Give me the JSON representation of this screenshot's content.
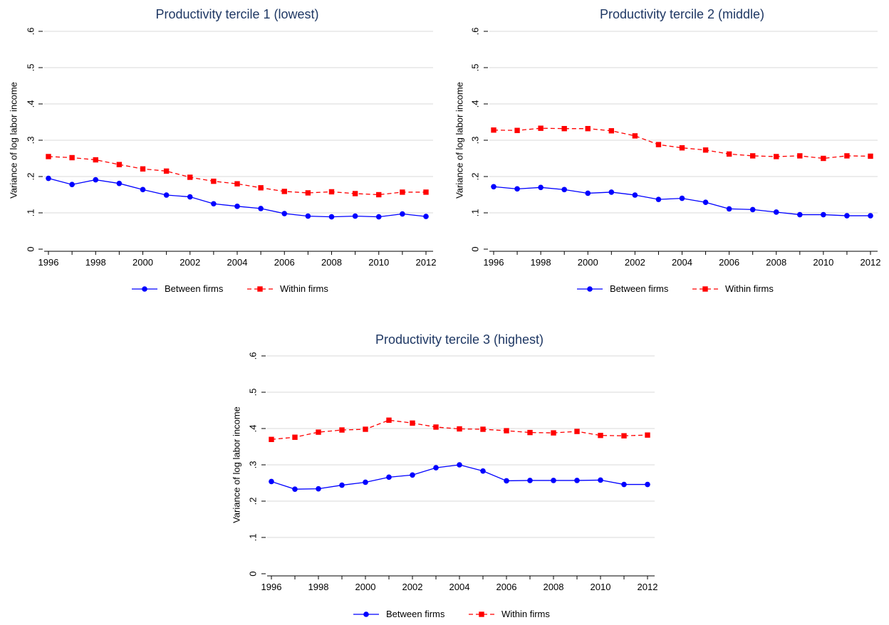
{
  "chart_data": [
    {
      "type": "line",
      "title": "Productivity tercile 1 (lowest)",
      "ylabel": "Variance of log labor income",
      "xlabel": "",
      "x": [
        1996,
        1997,
        1998,
        1999,
        2000,
        2001,
        2002,
        2003,
        2004,
        2005,
        2006,
        2007,
        2008,
        2009,
        2010,
        2011,
        2012
      ],
      "xticks": [
        "1996",
        "1998",
        "2000",
        "2002",
        "2004",
        "2006",
        "2008",
        "2010",
        "2012"
      ],
      "yticks": [
        "0",
        ".1",
        ".2",
        ".3",
        ".4",
        ".5",
        ".6"
      ],
      "ylim": [
        0,
        0.6
      ],
      "grid": true,
      "legend_position": "bottom",
      "series": [
        {
          "name": "Between firms",
          "color": "#0000ff",
          "marker": "circle",
          "dash": "solid",
          "values": [
            0.195,
            0.178,
            0.191,
            0.181,
            0.164,
            0.149,
            0.144,
            0.125,
            0.118,
            0.112,
            0.098,
            0.091,
            0.089,
            0.091,
            0.089,
            0.097,
            0.09
          ]
        },
        {
          "name": "Within firms",
          "color": "#ff0000",
          "marker": "square",
          "dash": "dashed",
          "values": [
            0.255,
            0.252,
            0.246,
            0.233,
            0.221,
            0.215,
            0.198,
            0.187,
            0.18,
            0.169,
            0.159,
            0.155,
            0.158,
            0.153,
            0.15,
            0.157,
            0.157
          ]
        }
      ]
    },
    {
      "type": "line",
      "title": "Productivity tercile 2 (middle)",
      "ylabel": "Variance of log labor income",
      "xlabel": "",
      "x": [
        1996,
        1997,
        1998,
        1999,
        2000,
        2001,
        2002,
        2003,
        2004,
        2005,
        2006,
        2007,
        2008,
        2009,
        2010,
        2011,
        2012
      ],
      "xticks": [
        "1996",
        "1998",
        "2000",
        "2002",
        "2004",
        "2006",
        "2008",
        "2010",
        "2012"
      ],
      "yticks": [
        "0",
        ".1",
        ".2",
        ".3",
        ".4",
        ".5",
        ".6"
      ],
      "ylim": [
        0,
        0.6
      ],
      "grid": true,
      "legend_position": "bottom",
      "series": [
        {
          "name": "Between firms",
          "color": "#0000ff",
          "marker": "circle",
          "dash": "solid",
          "values": [
            0.172,
            0.166,
            0.17,
            0.164,
            0.154,
            0.157,
            0.149,
            0.137,
            0.14,
            0.129,
            0.111,
            0.109,
            0.102,
            0.095,
            0.095,
            0.092,
            0.092
          ]
        },
        {
          "name": "Within firms",
          "color": "#ff0000",
          "marker": "square",
          "dash": "dashed",
          "values": [
            0.328,
            0.327,
            0.333,
            0.332,
            0.332,
            0.326,
            0.312,
            0.288,
            0.279,
            0.273,
            0.262,
            0.257,
            0.255,
            0.257,
            0.25,
            0.257,
            0.256
          ]
        }
      ]
    },
    {
      "type": "line",
      "title": "Productivity tercile 3 (highest)",
      "ylabel": "Variance of log labor income",
      "xlabel": "",
      "x": [
        1996,
        1997,
        1998,
        1999,
        2000,
        2001,
        2002,
        2003,
        2004,
        2005,
        2006,
        2007,
        2008,
        2009,
        2010,
        2011,
        2012
      ],
      "xticks": [
        "1996",
        "1998",
        "2000",
        "2002",
        "2004",
        "2006",
        "2008",
        "2010",
        "2012"
      ],
      "yticks": [
        "0",
        ".1",
        ".2",
        ".3",
        ".4",
        ".5",
        ".6"
      ],
      "ylim": [
        0,
        0.6
      ],
      "grid": true,
      "legend_position": "bottom",
      "series": [
        {
          "name": "Between firms",
          "color": "#0000ff",
          "marker": "circle",
          "dash": "solid",
          "values": [
            0.254,
            0.233,
            0.234,
            0.244,
            0.252,
            0.266,
            0.272,
            0.292,
            0.3,
            0.283,
            0.256,
            0.257,
            0.257,
            0.257,
            0.258,
            0.246,
            0.246
          ]
        },
        {
          "name": "Within firms",
          "color": "#ff0000",
          "marker": "square",
          "dash": "dashed",
          "values": [
            0.37,
            0.376,
            0.39,
            0.396,
            0.398,
            0.423,
            0.415,
            0.404,
            0.399,
            0.398,
            0.394,
            0.389,
            0.388,
            0.392,
            0.381,
            0.38,
            0.382
          ]
        }
      ]
    }
  ]
}
